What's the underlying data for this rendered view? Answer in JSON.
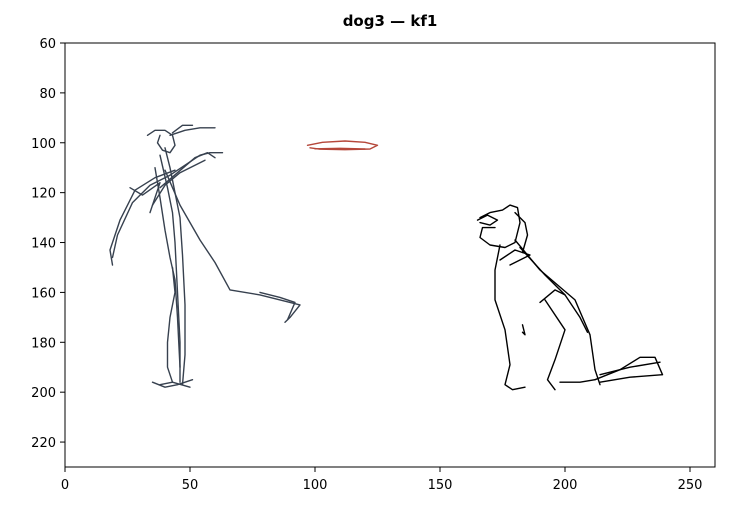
{
  "chart_data": {
    "type": "line",
    "title": "dog3 — kf1",
    "xlim": [
      0,
      260
    ],
    "ylim": [
      230,
      60
    ],
    "xticks": [
      0,
      50,
      100,
      150,
      200,
      250
    ],
    "yticks": [
      60,
      80,
      100,
      120,
      140,
      160,
      180,
      200,
      220
    ],
    "series": [
      {
        "color": "#37414f",
        "x": [
          33,
          36,
          40,
          43,
          44,
          42,
          39,
          37,
          38
        ],
        "y": [
          97,
          95,
          95,
          97,
          101,
          104,
          103,
          100,
          97
        ]
      },
      {
        "color": "#37414f",
        "x": [
          42,
          48,
          54,
          60
        ],
        "y": [
          97,
          95,
          94,
          94
        ]
      },
      {
        "color": "#37414f",
        "x": [
          43,
          47,
          51
        ],
        "y": [
          96,
          93,
          93
        ]
      },
      {
        "color": "#37414f",
        "x": [
          40,
          42,
          44,
          46,
          47,
          48,
          48,
          47
        ],
        "y": [
          102,
          110,
          120,
          130,
          145,
          165,
          185,
          197
        ]
      },
      {
        "color": "#37414f",
        "x": [
          38,
          41,
          43,
          44,
          45,
          46,
          46
        ],
        "y": [
          105,
          118,
          128,
          140,
          160,
          180,
          196
        ]
      },
      {
        "color": "#37414f",
        "x": [
          36,
          38,
          40,
          42,
          44,
          45,
          46
        ],
        "y": [
          110,
          122,
          135,
          146,
          155,
          170,
          190
        ]
      },
      {
        "color": "#37414f",
        "x": [
          40,
          46,
          54,
          60,
          66,
          78,
          94,
          90,
          88
        ],
        "y": [
          111,
          125,
          139,
          148,
          159,
          161,
          165,
          170,
          172
        ]
      },
      {
        "color": "#37414f",
        "x": [
          78,
          86,
          92,
          89
        ],
        "y": [
          160,
          162,
          164,
          171
        ]
      },
      {
        "color": "#37414f",
        "x": [
          44,
          36,
          28,
          22,
          18,
          19
        ],
        "y": [
          111,
          114,
          119,
          131,
          143,
          149
        ]
      },
      {
        "color": "#37414f",
        "x": [
          42,
          34,
          27,
          21,
          19
        ],
        "y": [
          113,
          117,
          124,
          137,
          146
        ]
      },
      {
        "color": "#37414f",
        "x": [
          34,
          38,
          31,
          26
        ],
        "y": [
          128,
          116,
          121,
          118
        ]
      },
      {
        "color": "#37414f",
        "x": [
          42,
          48,
          54,
          58,
          63
        ],
        "y": [
          113,
          109,
          105,
          104,
          104
        ]
      },
      {
        "color": "#37414f",
        "x": [
          38,
          45,
          52,
          57,
          60
        ],
        "y": [
          118,
          112,
          106,
          104,
          106
        ]
      },
      {
        "color": "#37414f",
        "x": [
          35,
          40,
          46,
          52,
          56
        ],
        "y": [
          125,
          117,
          112,
          109,
          107
        ]
      },
      {
        "color": "#37414f",
        "x": [
          43,
          44,
          42,
          41,
          41,
          43
        ],
        "y": [
          150,
          160,
          170,
          180,
          190,
          196
        ]
      },
      {
        "color": "#37414f",
        "x": [
          35,
          40,
          45,
          51
        ],
        "y": [
          196,
          198,
          197,
          195
        ]
      },
      {
        "color": "#37414f",
        "x": [
          38,
          43,
          50
        ],
        "y": [
          197,
          196,
          198
        ]
      },
      {
        "color": "#b5473a",
        "x": [
          97,
          103,
          112,
          120,
          125,
          122,
          112,
          102,
          98
        ],
        "y": [
          101,
          99.8,
          99.3,
          99.8,
          101,
          102.5,
          102.8,
          102.6,
          102
        ]
      },
      {
        "color": "#b5473a",
        "x": [
          100,
          110,
          120
        ],
        "y": [
          102.4,
          102.2,
          102.5
        ]
      },
      {
        "color": "#000000",
        "x": [
          166,
          170,
          175,
          178,
          181,
          182,
          180,
          176,
          170,
          166,
          167,
          172
        ],
        "y": [
          130,
          128,
          127,
          125,
          126,
          132,
          140,
          142,
          141,
          138,
          134,
          134
        ]
      },
      {
        "color": "#000000",
        "x": [
          165,
          169,
          173,
          170,
          166
        ],
        "y": [
          131,
          129,
          131,
          133,
          132
        ]
      },
      {
        "color": "#000000",
        "x": [
          180,
          184,
          185,
          183
        ],
        "y": [
          128,
          132,
          137,
          144
        ]
      },
      {
        "color": "#000000",
        "x": [
          180,
          190,
          204,
          210,
          212,
          214
        ],
        "y": [
          139,
          151,
          163,
          177,
          191,
          197
        ]
      },
      {
        "color": "#000000",
        "x": [
          182,
          192,
          200,
          206,
          209
        ],
        "y": [
          142,
          153,
          161,
          170,
          176
        ]
      },
      {
        "color": "#000000",
        "x": [
          174,
          172,
          172,
          176,
          178,
          176,
          179,
          184
        ],
        "y": [
          141,
          151,
          163,
          175,
          189,
          197,
          199,
          198
        ]
      },
      {
        "color": "#000000",
        "x": [
          174,
          180,
          186,
          178
        ],
        "y": [
          147,
          143,
          145,
          149
        ]
      },
      {
        "color": "#000000",
        "x": [
          183,
          184,
          183
        ],
        "y": [
          173,
          177,
          176
        ]
      },
      {
        "color": "#000000",
        "x": [
          192,
          200,
          196,
          193,
          196
        ],
        "y": [
          163,
          175,
          187,
          195,
          199
        ]
      },
      {
        "color": "#000000",
        "x": [
          190,
          196,
          200
        ],
        "y": [
          164,
          159,
          161
        ]
      },
      {
        "color": "#000000",
        "x": [
          212,
          222,
          230,
          236,
          239,
          226,
          214
        ],
        "y": [
          195,
          191,
          186,
          186,
          193,
          194,
          196
        ]
      },
      {
        "color": "#000000",
        "x": [
          214,
          226,
          238
        ],
        "y": [
          193,
          190,
          188
        ]
      },
      {
        "color": "#000000",
        "x": [
          198,
          206,
          212
        ],
        "y": [
          196,
          196,
          195
        ]
      }
    ]
  }
}
